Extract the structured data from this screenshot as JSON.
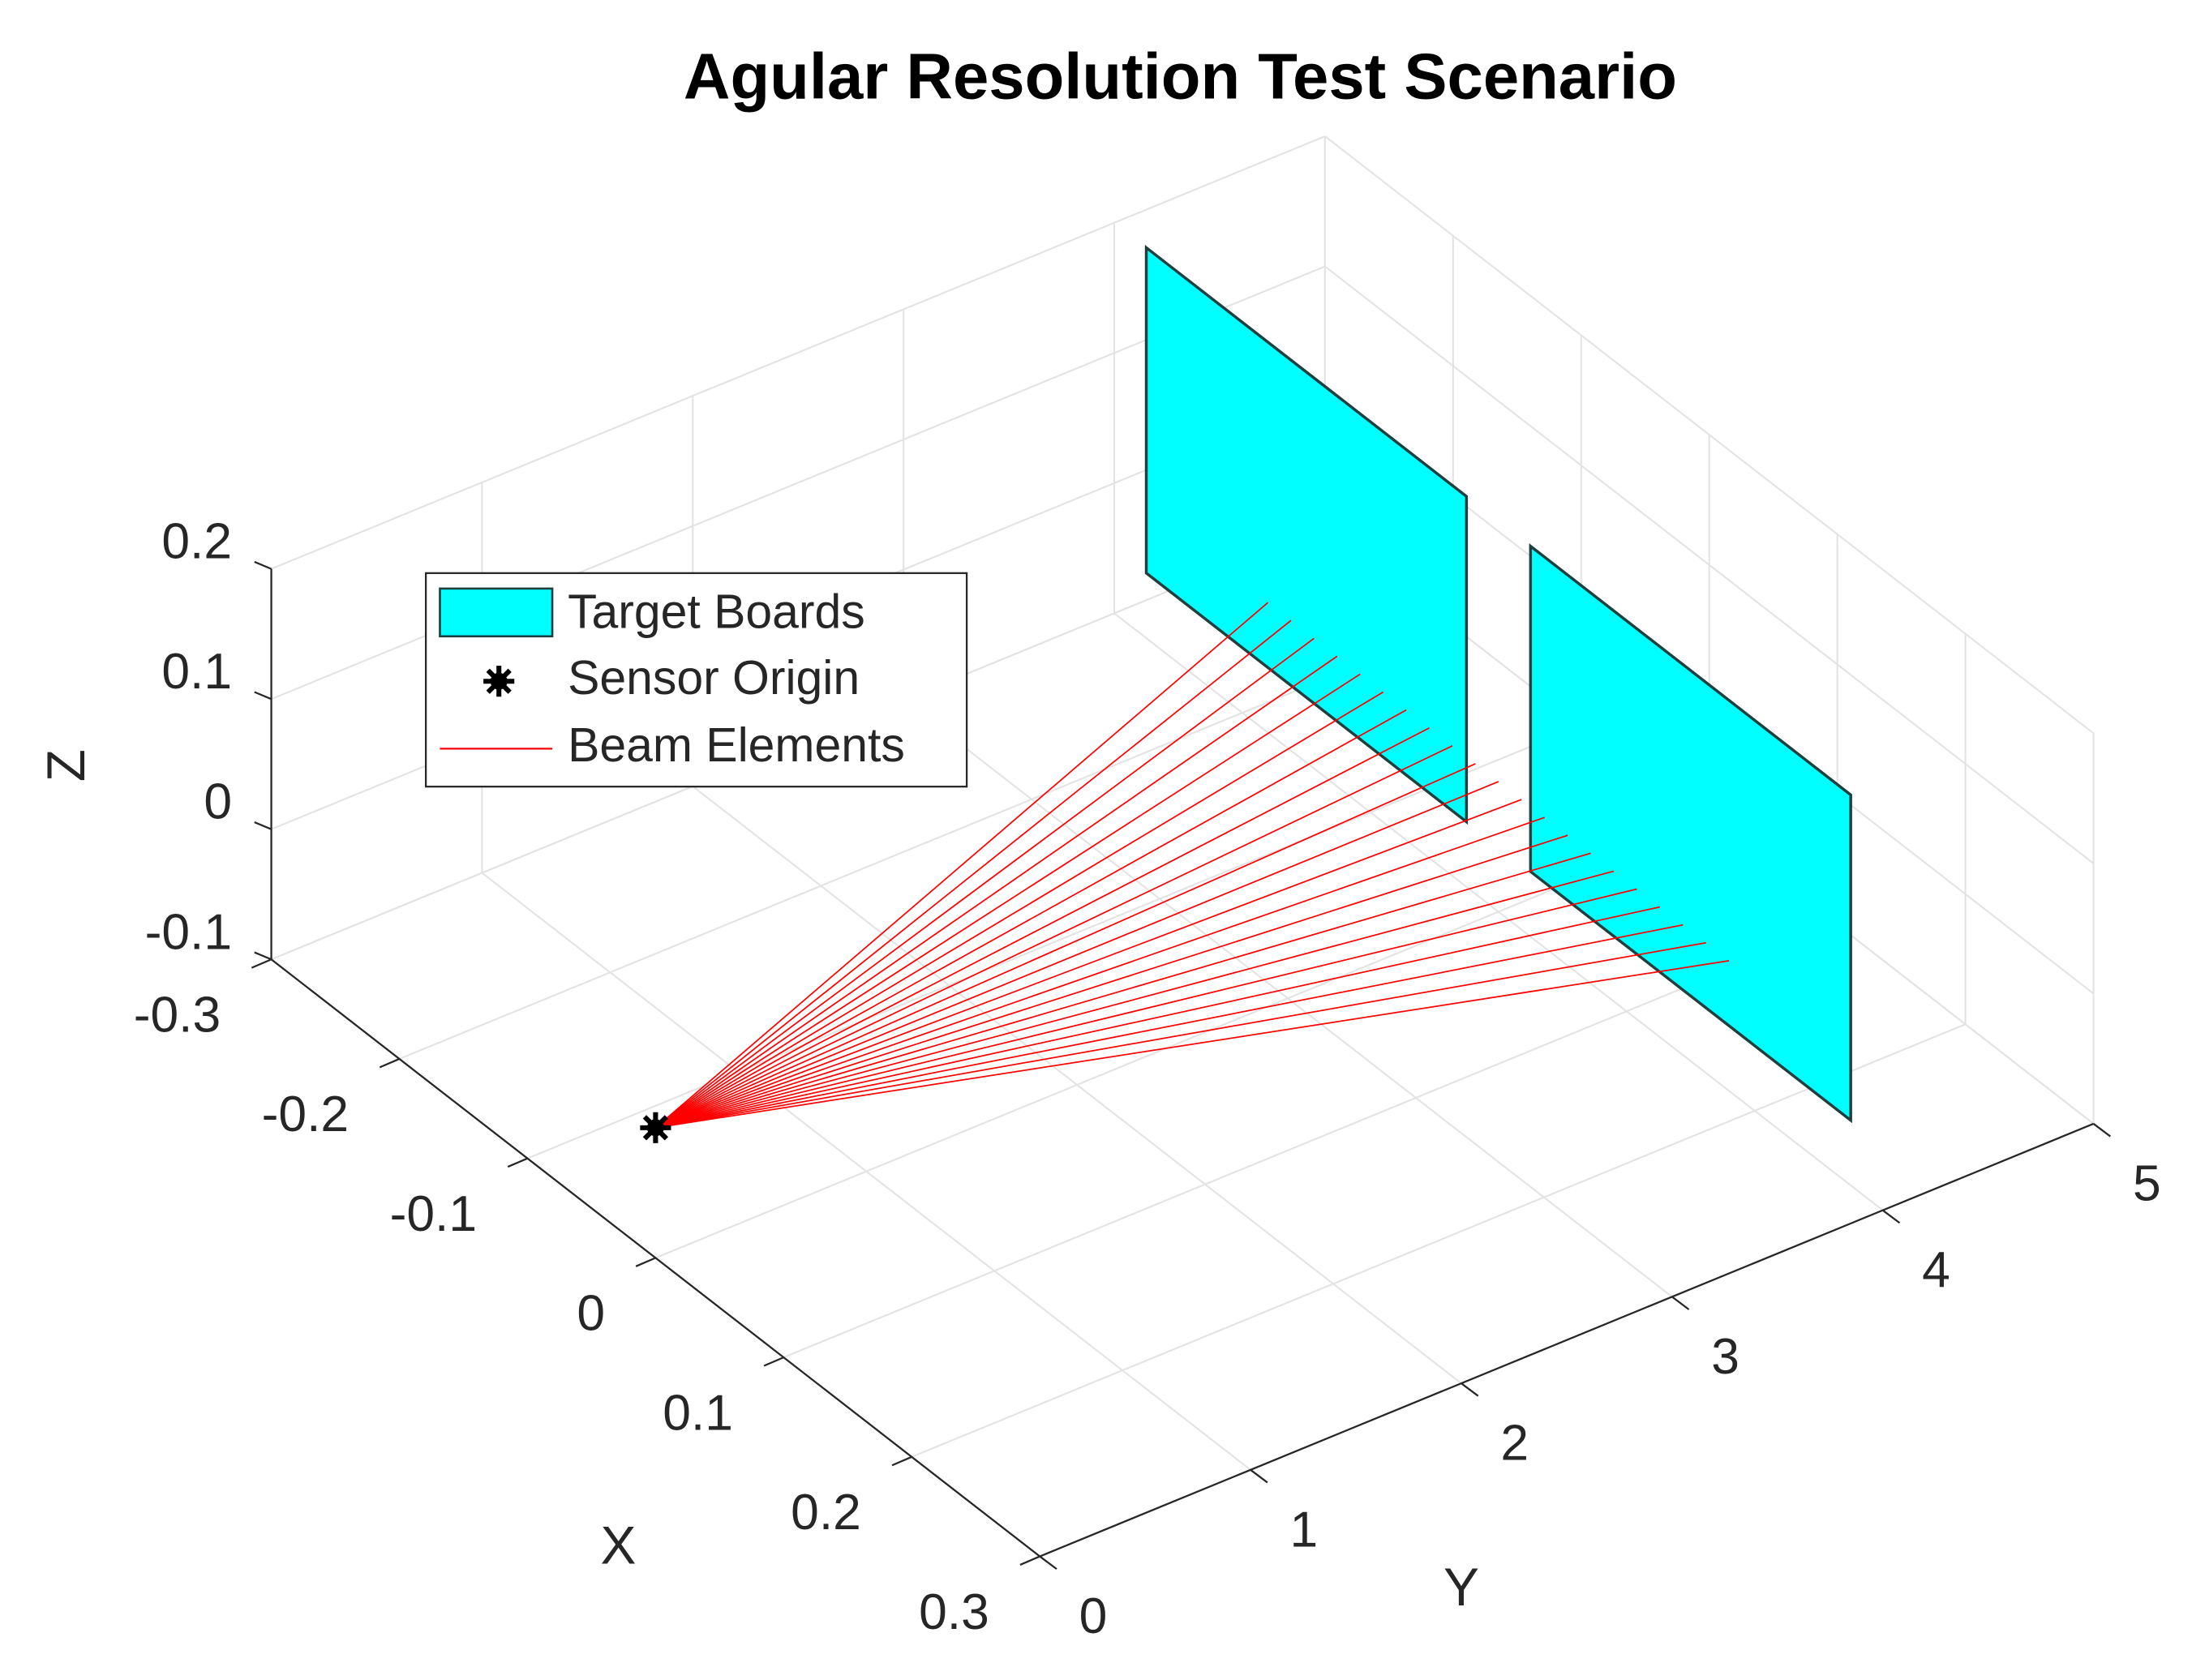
{
  "chart_data": {
    "type": "3d",
    "title": "Agular Resolution Test Scenario",
    "xlabel": "X",
    "ylabel": "Y",
    "zlabel": "Z",
    "xlim": [
      -0.3,
      0.3
    ],
    "ylim": [
      0,
      5
    ],
    "zlim": [
      -0.1,
      0.2
    ],
    "xticks": [
      -0.3,
      -0.2,
      -0.1,
      0,
      0.1,
      0.2,
      0.3
    ],
    "yticks": [
      0,
      1,
      2,
      3,
      4,
      5
    ],
    "zticks": [
      -0.1,
      0,
      0.1,
      0.2
    ],
    "grid": true,
    "legend": "northwest",
    "boards": {
      "name": "Target Boards",
      "color": "#00ffff",
      "edge_color": "#1f3f3f",
      "items": [
        {
          "x": [
            -0.275,
            -0.025
          ],
          "y": 4,
          "z": [
            -0.05,
            0.2
          ]
        },
        {
          "x": [
            0.025,
            0.275
          ],
          "y": 4,
          "z": [
            -0.05,
            0.2
          ]
        }
      ]
    },
    "sensor": {
      "name": "Sensor Origin",
      "color": "#000000",
      "x": 0,
      "y": 0,
      "z": 0
    },
    "beams": {
      "name": "Beam Elements",
      "color": "#ff0000",
      "x_end": [
        -0.18,
        -0.162,
        -0.144,
        -0.126,
        -0.108,
        -0.09,
        -0.072,
        -0.054,
        -0.036,
        -0.018,
        0,
        0.018,
        0.036,
        0.054,
        0.072,
        0.09,
        0.108,
        0.126,
        0.144,
        0.162,
        0.18
      ],
      "y_end": 4,
      "z_end": 0
    }
  }
}
